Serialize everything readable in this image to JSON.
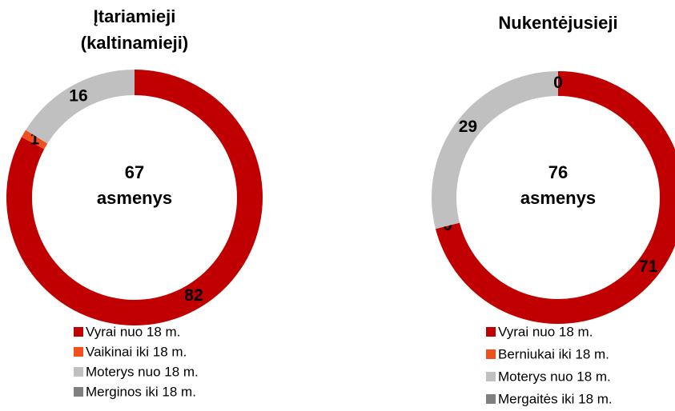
{
  "chart_data": [
    {
      "type": "donut",
      "title": [
        "Įtariamieji",
        "(kaltinamieji)"
      ],
      "center_value": 67,
      "center_label": "asmenys",
      "categories": [
        "Vyrai nuo 18 m.",
        "Vaikinai iki 18 m.",
        "Moterys nuo 18 m.",
        "Merginos iki 18 m."
      ],
      "values": [
        82,
        1,
        16,
        null
      ],
      "colors": [
        "#c00000",
        "#f0501e",
        "#c0c0c0",
        "#808080"
      ]
    },
    {
      "type": "donut",
      "title": [
        "Nukentėjusieji"
      ],
      "center_value": 76,
      "center_label": "asmenys",
      "categories": [
        "Vyrai nuo 18 m.",
        "Berniukai iki 18 m.",
        "Moterys nuo 18 m.",
        "Mergaitės iki 18 m."
      ],
      "values": [
        71,
        0,
        29,
        0
      ],
      "colors": [
        "#c00000",
        "#f0501e",
        "#c0c0c0",
        "#808080"
      ]
    }
  ]
}
